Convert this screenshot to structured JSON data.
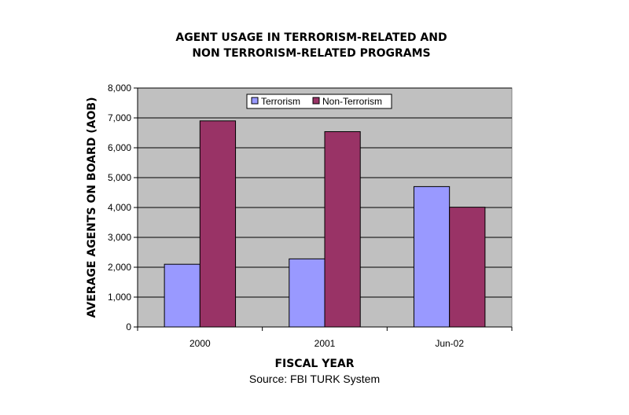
{
  "chart_data": {
    "type": "bar",
    "title": [
      "AGENT USAGE IN TERRORISM-RELATED AND",
      "NON TERRORISM-RELATED PROGRAMS"
    ],
    "xlabel": "FISCAL YEAR",
    "ylabel": "AVERAGE AGENTS ON BOARD (AOB)",
    "categories": [
      "2000",
      "2001",
      "Jun-02"
    ],
    "series": [
      {
        "name": "Terrorism",
        "values": [
          2100,
          2280,
          4700
        ],
        "color": "#9999ff"
      },
      {
        "name": "Non-Terrorism",
        "values": [
          6900,
          6540,
          4010
        ],
        "color": "#993366"
      }
    ],
    "ylim": [
      0,
      8000
    ],
    "yticks": [
      "0",
      "1,000",
      "2,000",
      "3,000",
      "4,000",
      "5,000",
      "6,000",
      "7,000",
      "8,000"
    ],
    "ytick_values": [
      0,
      1000,
      2000,
      3000,
      4000,
      5000,
      6000,
      7000,
      8000
    ],
    "grid": true,
    "plot_background": "#c0c0c0",
    "legend_position": "top-center",
    "source": "Source:  FBI TURK System"
  }
}
